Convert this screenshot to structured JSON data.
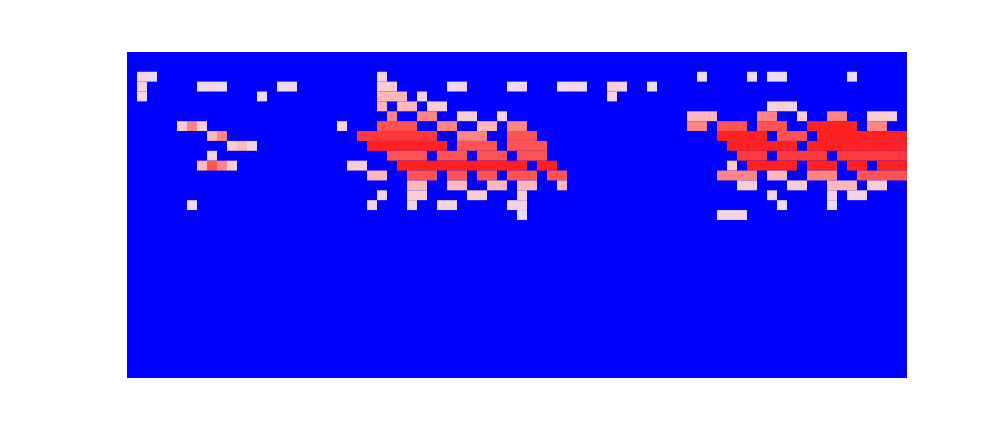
{
  "chart_data": {
    "type": "heatmap",
    "xlim": [
      0,
      78
    ],
    "ylim": [
      0,
      33
    ],
    "tick_labels": false,
    "color_range": [
      0,
      1
    ],
    "cells": [
      [
        1,
        2,
        0.5
      ],
      [
        2,
        2,
        0.4
      ],
      [
        1,
        3,
        0.5
      ],
      [
        1,
        4,
        0.4
      ],
      [
        7,
        3,
        0.4
      ],
      [
        8,
        3,
        0.5
      ],
      [
        9,
        3,
        0.4
      ],
      [
        13,
        4,
        0.4
      ],
      [
        15,
        3,
        0.4
      ],
      [
        16,
        3,
        0.5
      ],
      [
        5,
        7,
        0.6
      ],
      [
        6,
        7,
        0.8
      ],
      [
        7,
        7,
        0.6
      ],
      [
        8,
        8,
        0.7
      ],
      [
        9,
        8,
        0.8
      ],
      [
        10,
        9,
        0.6
      ],
      [
        11,
        9,
        0.7
      ],
      [
        12,
        9,
        0.5
      ],
      [
        8,
        10,
        0.5
      ],
      [
        7,
        11,
        0.7
      ],
      [
        8,
        11,
        0.9
      ],
      [
        9,
        11,
        0.8
      ],
      [
        10,
        11,
        0.6
      ],
      [
        6,
        15,
        0.4
      ],
      [
        25,
        2,
        0.5
      ],
      [
        25,
        3,
        0.6
      ],
      [
        26,
        3,
        0.6
      ],
      [
        32,
        3,
        0.4
      ],
      [
        33,
        3,
        0.5
      ],
      [
        38,
        3,
        0.4
      ],
      [
        39,
        3,
        0.5
      ],
      [
        43,
        3,
        0.4
      ],
      [
        44,
        3,
        0.5
      ],
      [
        45,
        3,
        0.4
      ],
      [
        48,
        3,
        0.6
      ],
      [
        49,
        3,
        0.5
      ],
      [
        48,
        4,
        0.5
      ],
      [
        52,
        3,
        0.4
      ],
      [
        57,
        2,
        0.4
      ],
      [
        62,
        2,
        0.4
      ],
      [
        64,
        2,
        0.4
      ],
      [
        65,
        2,
        0.4
      ],
      [
        72,
        2,
        0.4
      ],
      [
        64,
        5,
        0.5
      ],
      [
        65,
        5,
        0.6
      ],
      [
        66,
        5,
        0.5
      ],
      [
        25,
        4,
        0.7
      ],
      [
        26,
        4,
        0.7
      ],
      [
        27,
        4,
        0.7
      ],
      [
        29,
        4,
        0.5
      ],
      [
        25,
        5,
        0.7
      ],
      [
        27,
        5,
        0.7
      ],
      [
        28,
        5,
        0.7
      ],
      [
        30,
        5,
        0.6
      ],
      [
        31,
        5,
        0.6
      ],
      [
        26,
        6,
        0.8
      ],
      [
        29,
        6,
        0.8
      ],
      [
        30,
        6,
        0.8
      ],
      [
        33,
        6,
        0.6
      ],
      [
        34,
        6,
        0.6
      ],
      [
        37,
        6,
        0.5
      ],
      [
        21,
        7,
        0.5
      ],
      [
        25,
        7,
        0.9
      ],
      [
        26,
        7,
        0.9
      ],
      [
        27,
        7,
        0.9
      ],
      [
        28,
        7,
        0.9
      ],
      [
        31,
        7,
        0.8
      ],
      [
        32,
        7,
        0.8
      ],
      [
        35,
        7,
        0.7
      ],
      [
        36,
        7,
        0.7
      ],
      [
        38,
        7,
        0.8
      ],
      [
        39,
        7,
        0.8
      ],
      [
        23,
        8,
        0.95
      ],
      [
        24,
        8,
        0.95
      ],
      [
        25,
        8,
        0.95
      ],
      [
        26,
        8,
        0.95
      ],
      [
        27,
        8,
        0.95
      ],
      [
        28,
        8,
        0.95
      ],
      [
        29,
        8,
        0.95
      ],
      [
        30,
        8,
        0.95
      ],
      [
        33,
        8,
        0.8
      ],
      [
        34,
        8,
        0.8
      ],
      [
        35,
        8,
        0.8
      ],
      [
        38,
        8,
        0.9
      ],
      [
        39,
        8,
        0.9
      ],
      [
        40,
        8,
        0.9
      ],
      [
        24,
        9,
        1
      ],
      [
        25,
        9,
        1
      ],
      [
        26,
        9,
        1
      ],
      [
        27,
        9,
        1
      ],
      [
        28,
        9,
        1
      ],
      [
        29,
        9,
        1
      ],
      [
        30,
        9,
        1
      ],
      [
        31,
        9,
        1
      ],
      [
        33,
        9,
        0.9
      ],
      [
        34,
        9,
        0.9
      ],
      [
        35,
        9,
        0.9
      ],
      [
        36,
        9,
        0.9
      ],
      [
        38,
        9,
        0.9
      ],
      [
        39,
        9,
        0.9
      ],
      [
        40,
        9,
        0.9
      ],
      [
        41,
        9,
        0.9
      ],
      [
        26,
        10,
        0.9
      ],
      [
        27,
        10,
        0.9
      ],
      [
        28,
        10,
        0.9
      ],
      [
        29,
        10,
        0.9
      ],
      [
        31,
        10,
        0.9
      ],
      [
        32,
        10,
        0.9
      ],
      [
        33,
        10,
        0.9
      ],
      [
        35,
        10,
        0.9
      ],
      [
        36,
        10,
        0.9
      ],
      [
        37,
        10,
        0.9
      ],
      [
        39,
        10,
        0.9
      ],
      [
        40,
        10,
        0.9
      ],
      [
        41,
        10,
        0.9
      ],
      [
        22,
        11,
        0.6
      ],
      [
        23,
        11,
        0.6
      ],
      [
        27,
        11,
        1
      ],
      [
        28,
        11,
        1
      ],
      [
        29,
        11,
        1
      ],
      [
        30,
        11,
        1
      ],
      [
        31,
        11,
        1
      ],
      [
        32,
        11,
        1
      ],
      [
        33,
        11,
        1
      ],
      [
        34,
        11,
        1
      ],
      [
        35,
        11,
        1
      ],
      [
        36,
        11,
        1
      ],
      [
        37,
        11,
        1
      ],
      [
        38,
        11,
        1
      ],
      [
        39,
        11,
        1
      ],
      [
        41,
        11,
        1
      ],
      [
        42,
        11,
        1
      ],
      [
        24,
        12,
        0.7
      ],
      [
        25,
        12,
        0.7
      ],
      [
        28,
        12,
        0.9
      ],
      [
        29,
        12,
        0.9
      ],
      [
        30,
        12,
        0.9
      ],
      [
        32,
        12,
        0.9
      ],
      [
        33,
        12,
        0.9
      ],
      [
        35,
        12,
        0.9
      ],
      [
        36,
        12,
        0.9
      ],
      [
        38,
        12,
        0.9
      ],
      [
        39,
        12,
        0.9
      ],
      [
        40,
        12,
        0.9
      ],
      [
        42,
        12,
        0.9
      ],
      [
        43,
        12,
        0.9
      ],
      [
        28,
        13,
        0.7
      ],
      [
        29,
        13,
        0.7
      ],
      [
        32,
        13,
        0.7
      ],
      [
        33,
        13,
        0.7
      ],
      [
        36,
        13,
        0.7
      ],
      [
        37,
        13,
        0.7
      ],
      [
        39,
        13,
        0.7
      ],
      [
        40,
        13,
        0.7
      ],
      [
        43,
        13,
        0.7
      ],
      [
        25,
        14,
        0.5
      ],
      [
        28,
        14,
        0.6
      ],
      [
        29,
        14,
        0.6
      ],
      [
        34,
        14,
        0.6
      ],
      [
        35,
        14,
        0.6
      ],
      [
        39,
        14,
        0.6
      ],
      [
        24,
        15,
        0.5
      ],
      [
        28,
        15,
        0.5
      ],
      [
        31,
        15,
        0.5
      ],
      [
        32,
        15,
        0.5
      ],
      [
        38,
        15,
        0.5
      ],
      [
        39,
        15,
        0.5
      ],
      [
        39,
        16,
        0.4
      ],
      [
        56,
        6,
        0.7
      ],
      [
        57,
        6,
        0.7
      ],
      [
        58,
        6,
        0.7
      ],
      [
        63,
        6,
        0.8
      ],
      [
        64,
        6,
        0.8
      ],
      [
        67,
        6,
        0.6
      ],
      [
        70,
        6,
        0.8
      ],
      [
        71,
        6,
        0.8
      ],
      [
        74,
        6,
        0.6
      ],
      [
        75,
        6,
        0.6
      ],
      [
        76,
        6,
        0.6
      ],
      [
        56,
        7,
        0.8
      ],
      [
        57,
        7,
        0.8
      ],
      [
        59,
        7,
        0.9
      ],
      [
        60,
        7,
        0.9
      ],
      [
        61,
        7,
        0.9
      ],
      [
        63,
        7,
        0.9
      ],
      [
        64,
        7,
        0.9
      ],
      [
        65,
        7,
        0.9
      ],
      [
        68,
        7,
        1
      ],
      [
        69,
        7,
        1
      ],
      [
        70,
        7,
        1
      ],
      [
        71,
        7,
        1
      ],
      [
        72,
        7,
        1
      ],
      [
        74,
        7,
        0.8
      ],
      [
        75,
        7,
        0.8
      ],
      [
        59,
        8,
        1
      ],
      [
        60,
        8,
        1
      ],
      [
        61,
        8,
        1
      ],
      [
        62,
        8,
        1
      ],
      [
        63,
        8,
        1
      ],
      [
        65,
        8,
        0.9
      ],
      [
        66,
        8,
        0.9
      ],
      [
        67,
        8,
        0.9
      ],
      [
        69,
        8,
        1
      ],
      [
        70,
        8,
        1
      ],
      [
        71,
        8,
        1
      ],
      [
        72,
        8,
        1
      ],
      [
        73,
        8,
        1
      ],
      [
        74,
        8,
        1
      ],
      [
        75,
        8,
        1
      ],
      [
        76,
        8,
        1
      ],
      [
        77,
        8,
        1
      ],
      [
        60,
        9,
        1
      ],
      [
        61,
        9,
        1
      ],
      [
        62,
        9,
        1
      ],
      [
        63,
        9,
        1
      ],
      [
        64,
        9,
        1
      ],
      [
        65,
        9,
        1
      ],
      [
        66,
        9,
        1
      ],
      [
        68,
        9,
        1
      ],
      [
        69,
        9,
        1
      ],
      [
        70,
        9,
        1
      ],
      [
        71,
        9,
        1
      ],
      [
        72,
        9,
        1
      ],
      [
        73,
        9,
        1
      ],
      [
        74,
        9,
        1
      ],
      [
        75,
        9,
        1
      ],
      [
        76,
        9,
        1
      ],
      [
        77,
        9,
        1
      ],
      [
        61,
        10,
        0.95
      ],
      [
        62,
        10,
        0.95
      ],
      [
        63,
        10,
        0.95
      ],
      [
        65,
        10,
        0.95
      ],
      [
        66,
        10,
        0.95
      ],
      [
        67,
        10,
        0.95
      ],
      [
        68,
        10,
        0.95
      ],
      [
        69,
        10,
        0.95
      ],
      [
        71,
        10,
        0.95
      ],
      [
        72,
        10,
        0.95
      ],
      [
        73,
        10,
        0.95
      ],
      [
        74,
        10,
        0.95
      ],
      [
        75,
        10,
        0.95
      ],
      [
        76,
        10,
        0.95
      ],
      [
        77,
        10,
        0.95
      ],
      [
        60,
        11,
        0.6
      ],
      [
        62,
        11,
        1
      ],
      [
        63,
        11,
        1
      ],
      [
        64,
        11,
        1
      ],
      [
        65,
        11,
        1
      ],
      [
        66,
        11,
        1
      ],
      [
        68,
        11,
        1
      ],
      [
        69,
        11,
        1
      ],
      [
        70,
        11,
        1
      ],
      [
        72,
        11,
        1
      ],
      [
        73,
        11,
        1
      ],
      [
        75,
        11,
        1
      ],
      [
        76,
        11,
        1
      ],
      [
        77,
        11,
        1
      ],
      [
        59,
        12,
        0.8
      ],
      [
        60,
        12,
        0.8
      ],
      [
        61,
        12,
        0.8
      ],
      [
        62,
        12,
        0.8
      ],
      [
        64,
        12,
        0.7
      ],
      [
        65,
        12,
        0.7
      ],
      [
        68,
        12,
        0.8
      ],
      [
        69,
        12,
        0.8
      ],
      [
        70,
        12,
        0.8
      ],
      [
        73,
        12,
        0.9
      ],
      [
        74,
        12,
        0.9
      ],
      [
        75,
        12,
        0.9
      ],
      [
        76,
        12,
        0.9
      ],
      [
        77,
        12,
        0.9
      ],
      [
        61,
        13,
        0.6
      ],
      [
        62,
        13,
        0.6
      ],
      [
        66,
        13,
        0.6
      ],
      [
        67,
        13,
        0.6
      ],
      [
        70,
        13,
        0.7
      ],
      [
        71,
        13,
        0.7
      ],
      [
        72,
        13,
        0.7
      ],
      [
        74,
        13,
        0.6
      ],
      [
        75,
        13,
        0.6
      ],
      [
        64,
        14,
        0.5
      ],
      [
        70,
        14,
        0.5
      ],
      [
        72,
        14,
        0.5
      ],
      [
        73,
        14,
        0.5
      ],
      [
        65,
        15,
        0.4
      ],
      [
        70,
        15,
        0.4
      ],
      [
        59,
        16,
        0.5
      ],
      [
        60,
        16,
        0.5
      ],
      [
        61,
        16,
        0.5
      ]
    ]
  }
}
